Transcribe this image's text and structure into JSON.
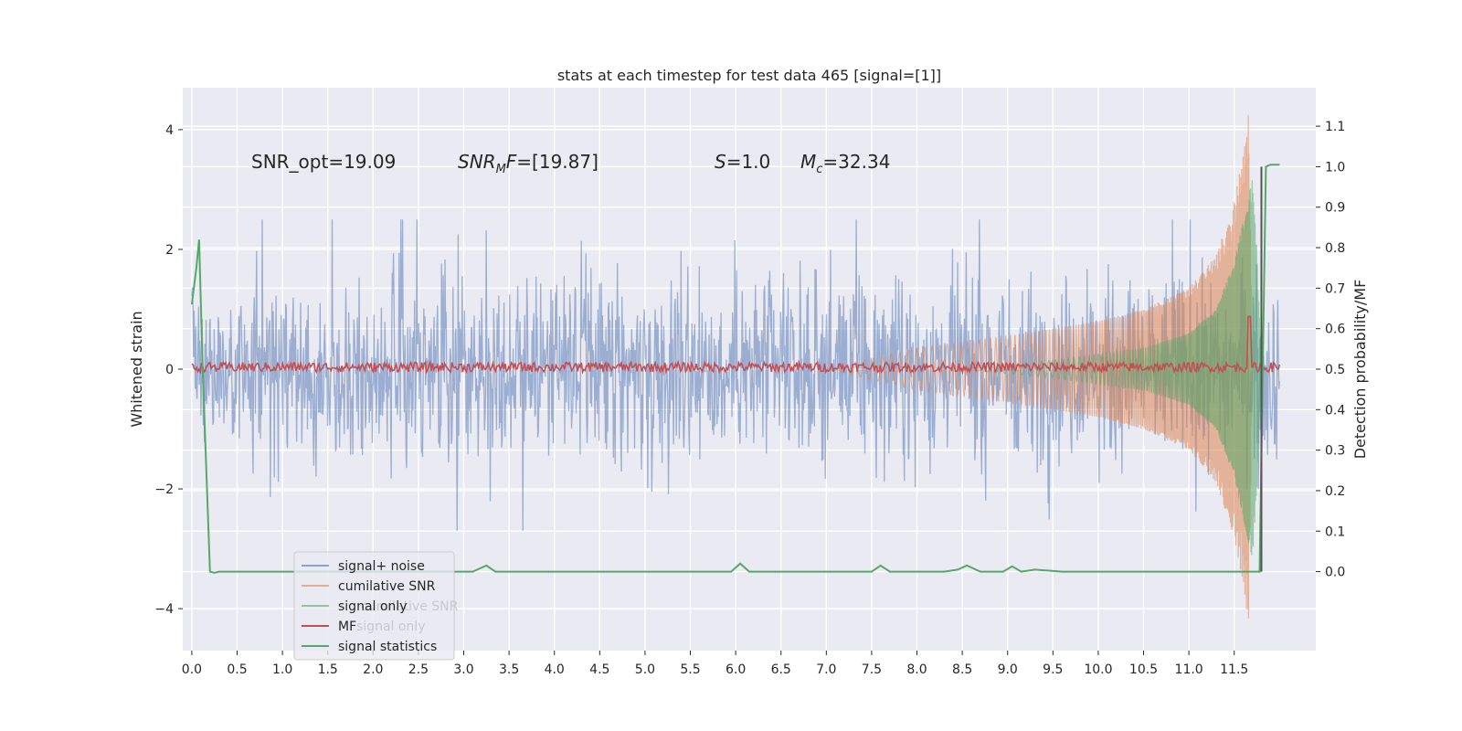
{
  "chart_data": {
    "type": "line",
    "title": "stats at each timestep for test data 465 [signal=[1]]",
    "xlabel": "",
    "ylabel": "Whitened strain",
    "y2label": "Detection probability/MF",
    "xlim": [
      -0.1,
      12.4
    ],
    "ylim": [
      -4.7,
      4.7
    ],
    "y2lim": [
      -0.195,
      1.195
    ],
    "x_ticks": [
      "0.0",
      "0.5",
      "1.0",
      "1.5",
      "2.0",
      "2.5",
      "3.0",
      "3.5",
      "4.0",
      "4.5",
      "5.0",
      "5.5",
      "6.0",
      "6.5",
      "7.0",
      "7.5",
      "8.0",
      "8.5",
      "9.0",
      "9.5",
      "10.0",
      "10.5",
      "11.0",
      "11.5"
    ],
    "y_ticks": [
      "−4",
      "−2",
      "0",
      "2",
      "4"
    ],
    "y2_ticks": [
      "0.0",
      "0.1",
      "0.2",
      "0.3",
      "0.4",
      "0.5",
      "0.6",
      "0.7",
      "0.8",
      "0.9",
      "1.0",
      "1.1"
    ],
    "grid": true,
    "legend_position": "lower-left",
    "annotations": [
      {
        "text": "SNR_opt=19.09",
        "x": 0.2,
        "y": 3.5
      },
      {
        "text": "SNR_MF=[19.87]",
        "x": 2.6,
        "y": 3.5
      },
      {
        "text": "S=1.0",
        "x": 5.6,
        "y": 3.5
      },
      {
        "text": "M_c=32.34",
        "x": 6.6,
        "y": 3.5
      }
    ],
    "series": [
      {
        "name": "signal+ noise",
        "axis": "left",
        "color": "#4c72b0",
        "kind": "noise",
        "sigma": 0.75,
        "t_range": [
          0.0,
          12.0
        ]
      },
      {
        "name": "cumilative SNR",
        "axis": "left",
        "color": "#dd8452",
        "kind": "chirp",
        "envelope": {
          "t": [
            7.0,
            8.0,
            9.0,
            10.0,
            10.5,
            11.0,
            11.3,
            11.5,
            11.6,
            11.66,
            11.7
          ],
          "amp": [
            0.0,
            0.35,
            0.55,
            0.8,
            1.0,
            1.35,
            1.9,
            2.8,
            3.6,
            4.3,
            0.0
          ]
        }
      },
      {
        "name": "signal only",
        "axis": "left",
        "color": "#55a868",
        "kind": "chirp",
        "envelope": {
          "t": [
            8.5,
            9.5,
            10.5,
            11.0,
            11.3,
            11.5,
            11.6,
            11.7,
            11.75,
            11.8
          ],
          "amp": [
            0.0,
            0.15,
            0.35,
            0.6,
            1.0,
            1.8,
            2.5,
            3.2,
            2.0,
            0.0
          ]
        }
      },
      {
        "name": "MF",
        "axis": "right",
        "color": "#c44e52",
        "kind": "band",
        "baseline": 0.505,
        "spread": 0.012,
        "spike": {
          "t": 11.67,
          "y": 0.63
        }
      },
      {
        "name": "signal statistics",
        "axis": "right",
        "color": "#55a868",
        "x": [
          0.0,
          0.05,
          0.08,
          0.12,
          0.2,
          0.25,
          0.3,
          3.1,
          3.25,
          3.35,
          5.95,
          6.05,
          6.15,
          7.5,
          7.6,
          7.7,
          8.3,
          8.45,
          8.55,
          8.7,
          8.95,
          9.05,
          9.15,
          9.3,
          9.6,
          11.0,
          11.4,
          11.55,
          11.7,
          11.78,
          11.85,
          11.9,
          11.95,
          12.0
        ],
        "y": [
          0.66,
          0.75,
          0.82,
          0.5,
          0.0,
          -0.003,
          0.0,
          0.0,
          0.015,
          0.0,
          0.0,
          0.02,
          0.0,
          0.0,
          0.015,
          0.0,
          0.0,
          0.005,
          0.015,
          0.0,
          0.0,
          0.013,
          0.0,
          0.005,
          0.0,
          0.0,
          0.0,
          0.0,
          0.0,
          0.0,
          1.0,
          1.005,
          1.005,
          1.005
        ]
      },
      {
        "name": "signal only",
        "axis": "right",
        "color": "#555555",
        "kind": "vline",
        "x": 11.8,
        "y": [
          0.0,
          1.0
        ]
      }
    ],
    "legend": [
      "signal+ noise",
      "cumilative SNR",
      "signal only",
      "MF",
      "signal statistics"
    ],
    "legend_hidden": [
      "cumilative SNR",
      "signal only"
    ]
  }
}
